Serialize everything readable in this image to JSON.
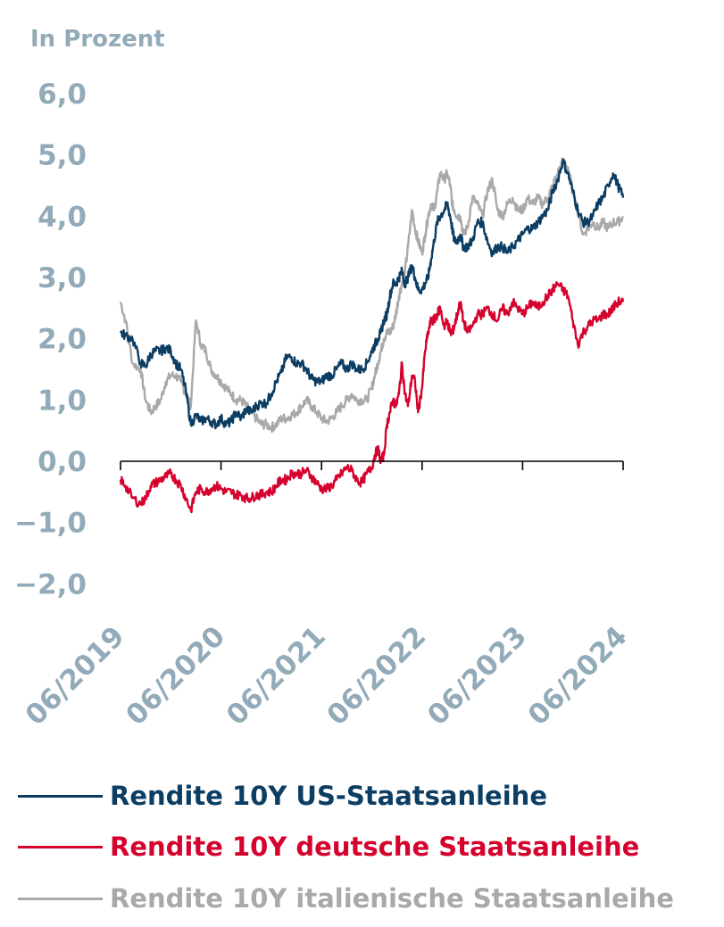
{
  "chart_data": {
    "type": "line",
    "ylabel": "In Prozent",
    "ylim": [
      -2.0,
      6.0
    ],
    "yticks": [
      "6,0",
      "5,0",
      "4,0",
      "3,0",
      "2,0",
      "1,0",
      "0,0",
      "−1,0",
      "−2,0"
    ],
    "ytick_values": [
      6,
      5,
      4,
      3,
      2,
      1,
      0,
      -1,
      -2
    ],
    "x_range": [
      2019.5,
      2024.5
    ],
    "xticks": [
      "06/2019",
      "06/2020",
      "06/2021",
      "06/2022",
      "06/2023",
      "06/2024"
    ],
    "xtick_values": [
      2019.5,
      2020.5,
      2021.5,
      2022.5,
      2023.5,
      2024.5
    ],
    "series": [
      {
        "name": "Rendite 10Y italienische Staatsanleihe",
        "color": "#a9a9a9",
        "x": [
          2019.5,
          2019.55,
          2019.62,
          2019.7,
          2019.75,
          2019.8,
          2019.85,
          2019.9,
          2019.95,
          2020.0,
          2020.05,
          2020.1,
          2020.15,
          2020.2,
          2020.25,
          2020.3,
          2020.35,
          2020.4,
          2020.45,
          2020.5,
          2020.55,
          2020.6,
          2020.65,
          2020.7,
          2020.75,
          2020.8,
          2020.85,
          2020.9,
          2020.95,
          2021.0,
          2021.05,
          2021.1,
          2021.15,
          2021.2,
          2021.25,
          2021.3,
          2021.35,
          2021.4,
          2021.45,
          2021.5,
          2021.55,
          2021.6,
          2021.65,
          2021.7,
          2021.75,
          2021.8,
          2021.85,
          2021.9,
          2021.95,
          2022.0,
          2022.03,
          2022.06,
          2022.09,
          2022.12,
          2022.15,
          2022.18,
          2022.21,
          2022.24,
          2022.27,
          2022.3,
          2022.33,
          2022.36,
          2022.4,
          2022.43,
          2022.46,
          2022.5,
          2022.53,
          2022.56,
          2022.59,
          2022.62,
          2022.65,
          2022.68,
          2022.72,
          2022.75,
          2022.78,
          2022.8,
          2022.82,
          2022.85,
          2022.88,
          2022.91,
          2022.95,
          2023.0,
          2023.05,
          2023.1,
          2023.15,
          2023.2,
          2023.25,
          2023.3,
          2023.35,
          2023.4,
          2023.45,
          2023.5,
          2023.55,
          2023.6,
          2023.65,
          2023.7,
          2023.75,
          2023.8,
          2023.85,
          2023.9,
          2023.95,
          2024.0,
          2024.05,
          2024.1,
          2024.15,
          2024.2,
          2024.25,
          2024.3,
          2024.35,
          2024.4,
          2024.45,
          2024.5
        ],
        "values": [
          2.6,
          2.3,
          1.6,
          1.5,
          1.0,
          0.8,
          0.9,
          1.0,
          1.3,
          1.4,
          1.4,
          1.3,
          1.1,
          0.9,
          2.3,
          1.9,
          1.8,
          1.5,
          1.4,
          1.3,
          1.2,
          1.1,
          1.0,
          1.0,
          0.9,
          0.8,
          0.7,
          0.6,
          0.6,
          0.55,
          0.6,
          0.7,
          0.7,
          0.75,
          0.8,
          0.9,
          1.0,
          0.9,
          0.8,
          0.7,
          0.65,
          0.7,
          0.8,
          0.9,
          1.0,
          1.1,
          1.0,
          1.0,
          1.0,
          1.2,
          1.4,
          1.6,
          1.8,
          2.0,
          2.1,
          2.1,
          2.2,
          2.4,
          2.7,
          2.9,
          3.1,
          3.5,
          4.1,
          3.8,
          3.6,
          3.4,
          3.7,
          4.0,
          4.2,
          4.1,
          4.4,
          4.7,
          4.6,
          4.7,
          4.5,
          4.2,
          4.1,
          4.0,
          4.0,
          3.7,
          3.8,
          4.3,
          4.2,
          4.0,
          4.4,
          4.6,
          4.1,
          4.0,
          4.2,
          4.3,
          4.1,
          4.1,
          4.3,
          4.2,
          4.3,
          4.2,
          4.3,
          4.5,
          4.7,
          4.9,
          4.8,
          4.4,
          4.1,
          3.7,
          3.8,
          3.9,
          3.8,
          3.9,
          3.8,
          3.9,
          3.9,
          4.0
        ]
      },
      {
        "name": "Rendite 10Y US-Staatsanleihe",
        "color": "#0c3d63",
        "x": [
          2019.5,
          2019.55,
          2019.62,
          2019.7,
          2019.75,
          2019.8,
          2019.85,
          2019.9,
          2019.95,
          2020.0,
          2020.05,
          2020.1,
          2020.15,
          2020.2,
          2020.25,
          2020.3,
          2020.35,
          2020.4,
          2020.45,
          2020.5,
          2020.55,
          2020.6,
          2020.65,
          2020.7,
          2020.75,
          2020.8,
          2020.85,
          2020.9,
          2020.95,
          2021.0,
          2021.05,
          2021.1,
          2021.15,
          2021.2,
          2021.25,
          2021.3,
          2021.35,
          2021.4,
          2021.45,
          2021.5,
          2021.55,
          2021.6,
          2021.65,
          2021.7,
          2021.75,
          2021.8,
          2021.85,
          2021.9,
          2021.95,
          2022.0,
          2022.03,
          2022.06,
          2022.09,
          2022.12,
          2022.15,
          2022.18,
          2022.21,
          2022.24,
          2022.27,
          2022.3,
          2022.33,
          2022.36,
          2022.4,
          2022.43,
          2022.46,
          2022.5,
          2022.53,
          2022.56,
          2022.59,
          2022.62,
          2022.65,
          2022.68,
          2022.72,
          2022.75,
          2022.78,
          2022.8,
          2022.82,
          2022.85,
          2022.88,
          2022.91,
          2022.95,
          2023.0,
          2023.05,
          2023.1,
          2023.15,
          2023.2,
          2023.25,
          2023.3,
          2023.35,
          2023.4,
          2023.45,
          2023.5,
          2023.55,
          2023.6,
          2023.65,
          2023.7,
          2023.75,
          2023.8,
          2023.85,
          2023.9,
          2023.95,
          2024.0,
          2024.05,
          2024.1,
          2024.15,
          2024.2,
          2024.25,
          2024.3,
          2024.35,
          2024.4,
          2024.45,
          2024.5
        ],
        "values": [
          2.1,
          2.05,
          2.0,
          1.6,
          1.55,
          1.75,
          1.8,
          1.8,
          1.85,
          1.8,
          1.6,
          1.5,
          1.15,
          0.6,
          0.75,
          0.65,
          0.7,
          0.65,
          0.6,
          0.7,
          0.6,
          0.65,
          0.8,
          0.7,
          0.85,
          0.8,
          0.9,
          0.95,
          0.95,
          1.1,
          1.3,
          1.45,
          1.7,
          1.7,
          1.6,
          1.6,
          1.5,
          1.35,
          1.3,
          1.3,
          1.4,
          1.4,
          1.5,
          1.6,
          1.5,
          1.6,
          1.5,
          1.5,
          1.6,
          1.8,
          1.9,
          2.0,
          2.1,
          2.3,
          2.4,
          2.7,
          2.9,
          2.9,
          3.0,
          3.1,
          2.9,
          3.0,
          3.2,
          3.0,
          2.8,
          2.8,
          2.9,
          3.0,
          3.3,
          3.6,
          3.9,
          4.0,
          4.1,
          4.2,
          4.0,
          3.8,
          3.6,
          3.6,
          3.7,
          3.5,
          3.5,
          3.6,
          3.9,
          3.9,
          3.6,
          3.4,
          3.5,
          3.5,
          3.4,
          3.5,
          3.6,
          3.7,
          3.8,
          3.8,
          3.9,
          4.0,
          4.1,
          4.4,
          4.6,
          4.9,
          4.7,
          4.4,
          4.1,
          3.9,
          3.9,
          4.0,
          4.2,
          4.3,
          4.5,
          4.7,
          4.5,
          4.3
        ]
      },
      {
        "name": "Rendite 10Y deutsche Staatsanleihe",
        "color": "#d5022e",
        "x": [
          2019.5,
          2019.55,
          2019.62,
          2019.7,
          2019.75,
          2019.8,
          2019.85,
          2019.9,
          2019.95,
          2020.0,
          2020.05,
          2020.1,
          2020.15,
          2020.2,
          2020.25,
          2020.3,
          2020.35,
          2020.4,
          2020.45,
          2020.5,
          2020.55,
          2020.6,
          2020.65,
          2020.7,
          2020.75,
          2020.8,
          2020.85,
          2020.9,
          2020.95,
          2021.0,
          2021.05,
          2021.1,
          2021.15,
          2021.2,
          2021.25,
          2021.3,
          2021.35,
          2021.4,
          2021.45,
          2021.5,
          2021.55,
          2021.6,
          2021.65,
          2021.7,
          2021.75,
          2021.8,
          2021.85,
          2021.9,
          2021.95,
          2022.0,
          2022.03,
          2022.06,
          2022.09,
          2022.12,
          2022.15,
          2022.18,
          2022.21,
          2022.24,
          2022.27,
          2022.3,
          2022.33,
          2022.36,
          2022.4,
          2022.43,
          2022.46,
          2022.5,
          2022.53,
          2022.56,
          2022.59,
          2022.62,
          2022.65,
          2022.68,
          2022.72,
          2022.75,
          2022.78,
          2022.8,
          2022.82,
          2022.85,
          2022.88,
          2022.91,
          2022.95,
          2023.0,
          2023.05,
          2023.1,
          2023.15,
          2023.2,
          2023.25,
          2023.3,
          2023.35,
          2023.4,
          2023.45,
          2023.5,
          2023.55,
          2023.6,
          2023.65,
          2023.7,
          2023.75,
          2023.8,
          2023.85,
          2023.9,
          2023.95,
          2024.0,
          2024.05,
          2024.1,
          2024.15,
          2024.2,
          2024.25,
          2024.3,
          2024.35,
          2024.4,
          2024.45,
          2024.5
        ],
        "values": [
          -0.3,
          -0.4,
          -0.6,
          -0.7,
          -0.6,
          -0.4,
          -0.35,
          -0.3,
          -0.25,
          -0.2,
          -0.3,
          -0.4,
          -0.6,
          -0.8,
          -0.5,
          -0.45,
          -0.5,
          -0.45,
          -0.4,
          -0.45,
          -0.5,
          -0.5,
          -0.55,
          -0.55,
          -0.6,
          -0.6,
          -0.55,
          -0.55,
          -0.5,
          -0.5,
          -0.4,
          -0.3,
          -0.3,
          -0.2,
          -0.2,
          -0.2,
          -0.15,
          -0.25,
          -0.35,
          -0.45,
          -0.45,
          -0.4,
          -0.3,
          -0.2,
          -0.1,
          -0.15,
          -0.3,
          -0.35,
          -0.2,
          -0.1,
          0.1,
          0.2,
          0.0,
          0.1,
          0.6,
          0.8,
          1.0,
          0.9,
          1.1,
          1.6,
          1.1,
          0.9,
          1.4,
          1.3,
          0.8,
          1.2,
          1.8,
          2.1,
          2.3,
          2.3,
          2.4,
          2.5,
          2.2,
          2.3,
          2.1,
          2.1,
          2.2,
          2.4,
          2.6,
          2.3,
          2.1,
          2.2,
          2.4,
          2.4,
          2.5,
          2.4,
          2.3,
          2.5,
          2.4,
          2.6,
          2.5,
          2.4,
          2.5,
          2.6,
          2.5,
          2.6,
          2.7,
          2.8,
          2.9,
          2.8,
          2.7,
          2.3,
          1.9,
          2.1,
          2.2,
          2.3,
          2.3,
          2.4,
          2.4,
          2.5,
          2.6,
          2.6
        ]
      }
    ]
  },
  "legend": [
    {
      "label": "Rendite 10Y US-Staatsanleihe",
      "color": "#0c3d63"
    },
    {
      "label": "Rendite 10Y deutsche Staatsanleihe",
      "color": "#d5022e"
    },
    {
      "label": "Rendite 10Y italienische Staatsanleihe",
      "color": "#a9a9a9"
    }
  ]
}
